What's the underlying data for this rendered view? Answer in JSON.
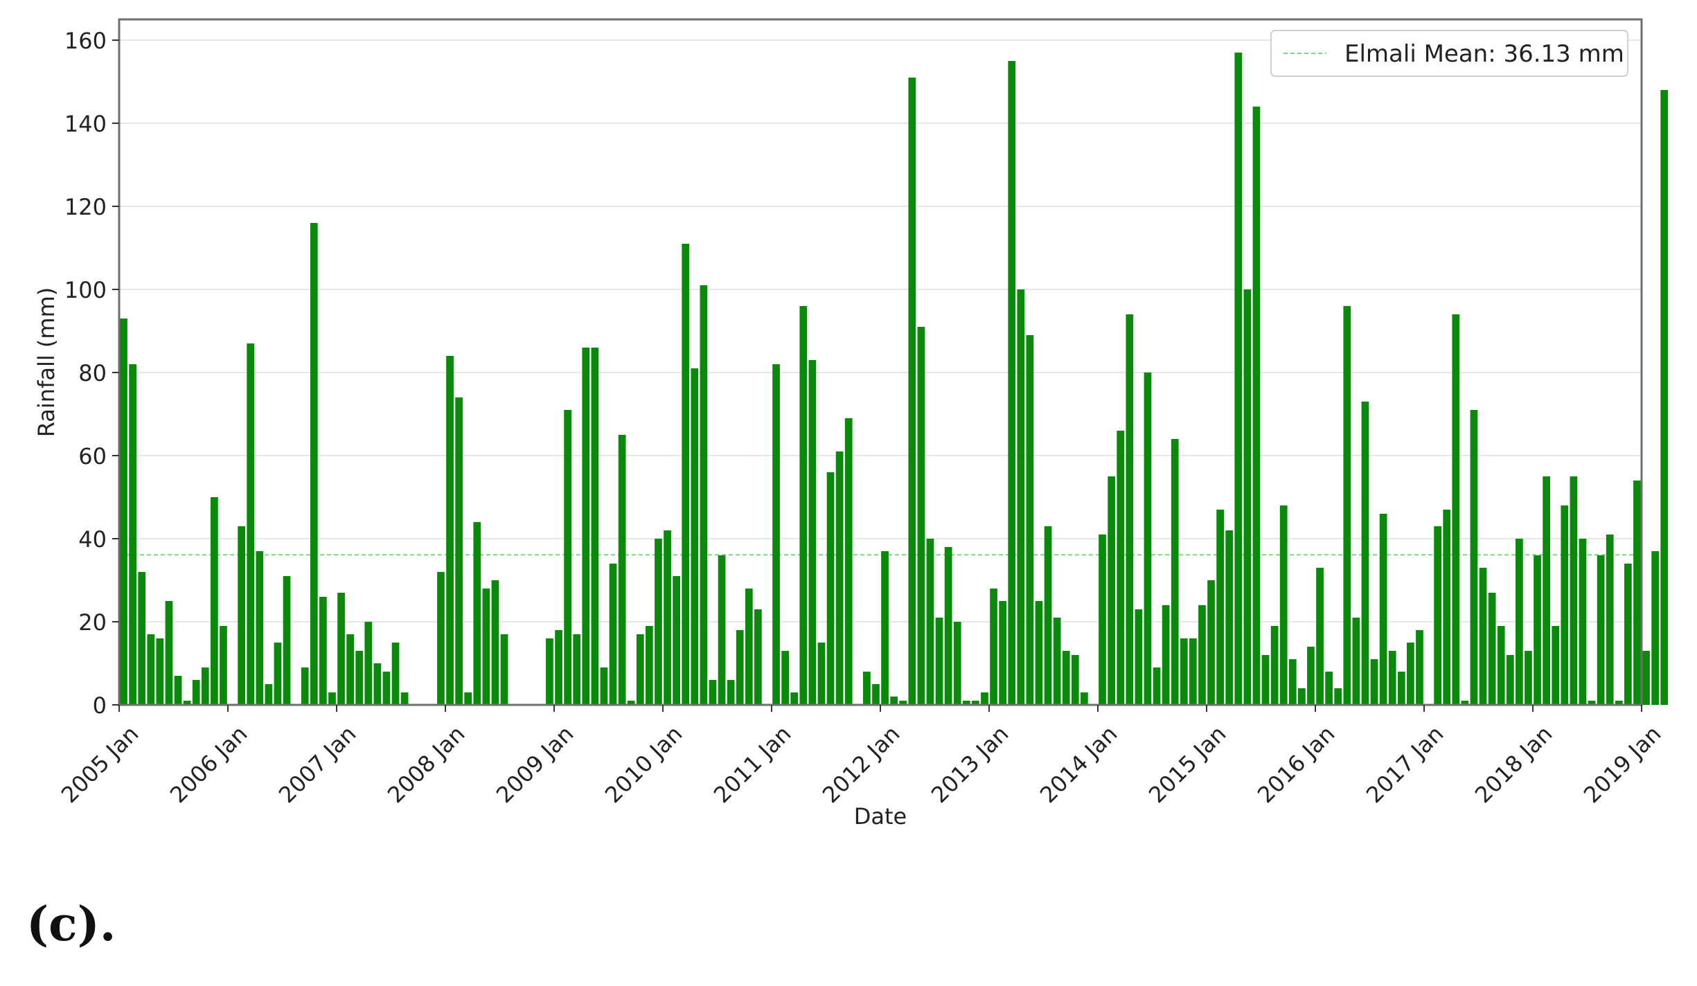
{
  "caption": "(c).",
  "chart_data": {
    "type": "bar",
    "xlabel": "Date",
    "ylabel": "Rainfall (mm)",
    "ylim": [
      0,
      165
    ],
    "yticks": [
      0,
      20,
      40,
      60,
      80,
      100,
      120,
      140,
      160
    ],
    "x_start": "2005-01",
    "x_ticks": [
      "2005 Jan",
      "2006 Jan",
      "2007 Jan",
      "2008 Jan",
      "2009 Jan",
      "2010 Jan",
      "2011 Jan",
      "2012 Jan",
      "2013 Jan",
      "2014 Jan",
      "2015 Jan",
      "2016 Jan",
      "2017 Jan",
      "2018 Jan",
      "2019 Jan"
    ],
    "grid": "horizontal",
    "bar_color": "#0a8a0a",
    "mean_line": {
      "label": "Elmali Mean: 36.13 mm",
      "value": 36.13,
      "color": "#7fd47f",
      "style": "dashed"
    },
    "legend_position": "top-right",
    "series": [
      {
        "values": [
          93,
          82,
          32,
          17,
          16,
          25,
          7,
          1,
          6,
          9,
          50,
          19,
          0,
          43,
          87,
          37,
          5,
          15,
          31,
          0,
          9,
          116,
          26,
          3,
          27,
          17,
          13,
          20,
          10,
          8,
          15,
          3,
          0,
          0,
          0,
          32,
          84,
          74,
          3,
          44,
          28,
          30,
          17,
          0,
          0,
          0,
          0,
          16,
          18,
          71,
          17,
          86,
          86,
          9,
          34,
          65,
          1,
          17,
          19,
          40,
          42,
          31,
          111,
          81,
          101,
          6,
          36,
          6,
          18,
          28,
          23,
          0,
          82,
          13,
          3,
          96,
          83,
          15,
          56,
          61,
          69,
          0,
          8,
          5,
          37,
          2,
          1,
          151,
          91,
          40,
          21,
          38,
          20,
          1,
          1,
          3,
          28,
          25,
          155,
          100,
          89,
          25,
          43,
          21,
          13,
          12,
          3,
          0,
          41,
          55,
          66,
          94,
          23,
          80,
          9,
          24,
          64,
          16,
          16,
          24,
          30,
          47,
          42,
          157,
          100,
          144,
          12,
          19,
          48,
          11,
          4,
          14,
          33,
          8,
          4,
          96,
          21,
          73,
          11,
          46,
          13,
          8,
          15,
          18,
          0,
          43,
          47,
          94,
          1,
          71,
          33,
          27,
          19,
          12,
          40,
          13,
          36,
          55,
          19,
          48,
          55,
          40,
          1,
          36,
          41,
          1,
          34,
          54,
          13,
          37,
          148
        ]
      }
    ]
  }
}
